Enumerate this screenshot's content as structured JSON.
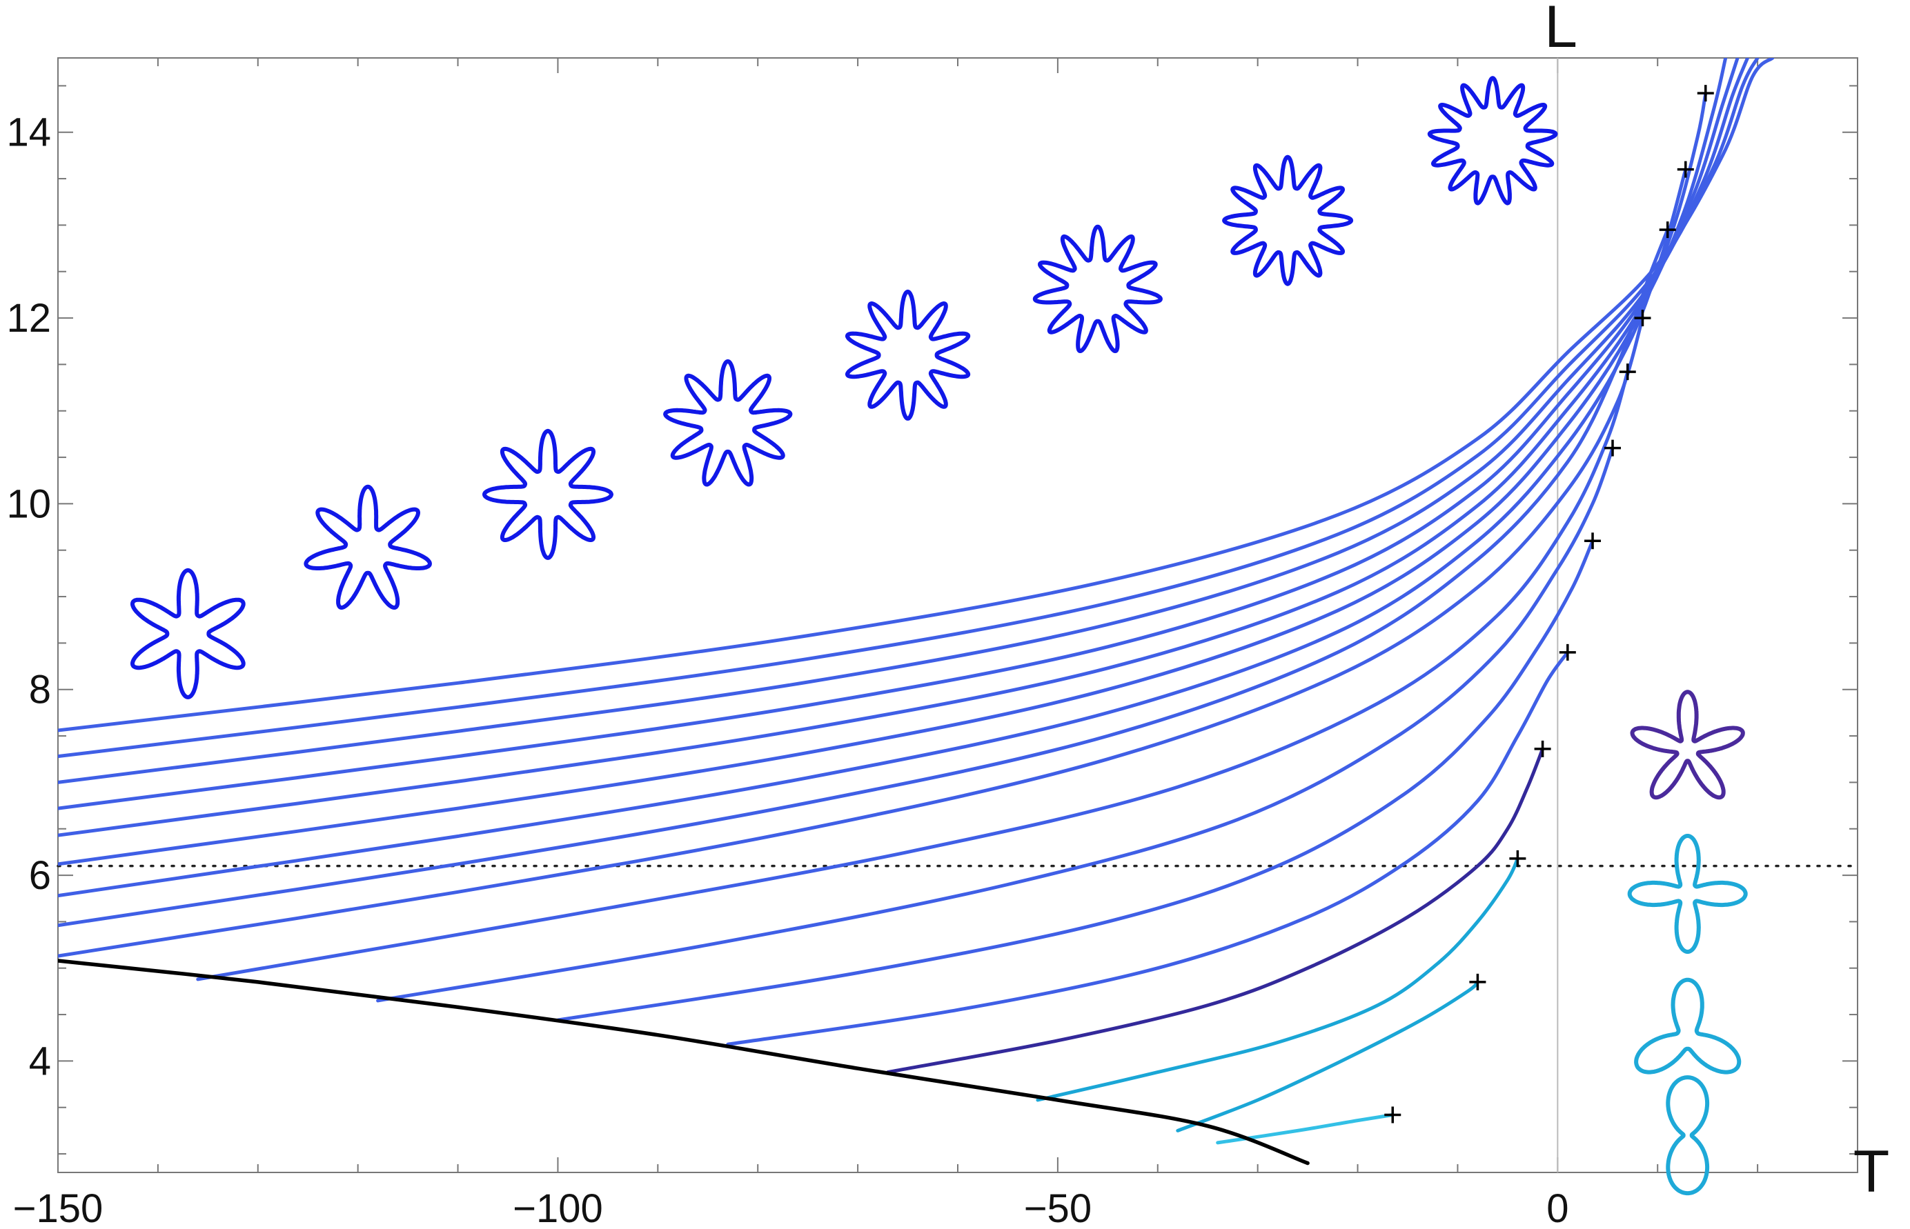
{
  "chart_data": {
    "type": "line",
    "xlabel": "T",
    "ylabel": "L",
    "xlim": [
      -150,
      30
    ],
    "ylim": [
      2.8,
      14.8
    ],
    "x_ticks": [
      -150,
      -100,
      -50,
      0
    ],
    "x_tick_labels": [
      "−150",
      "−100",
      "−50",
      "0"
    ],
    "y_ticks": [
      4,
      6,
      8,
      10,
      12,
      14
    ],
    "y_tick_labels": [
      "4",
      "6",
      "8",
      "10",
      "12",
      "14"
    ],
    "grid": false,
    "frame": true,
    "reference_lines": [
      {
        "kind": "horizontal",
        "y": 6.1,
        "style": "dotted",
        "color": "#222222"
      },
      {
        "kind": "vertical",
        "x": 0,
        "style": "solid-thin",
        "color": "#bbbbbb"
      }
    ],
    "colors": {
      "boundary": "#000000",
      "branch_blue": "#3f5fe6",
      "branch_navy": "#33299a",
      "branch_cyan": "#1aa6d6",
      "flower_blue": "#1018e8",
      "flower_purple": "#4a2a9c",
      "flower_cyan": "#1ea9d8"
    },
    "boundary_curve": {
      "color": "#000000",
      "points": [
        [
          -150,
          5.08
        ],
        [
          -130,
          4.85
        ],
        [
          -110,
          4.58
        ],
        [
          -90,
          4.28
        ],
        [
          -70,
          3.92
        ],
        [
          -50,
          3.58
        ],
        [
          -35,
          3.3
        ],
        [
          -25,
          2.9
        ]
      ]
    },
    "series": [
      {
        "color": "#33c0e6",
        "points": [
          [
            -34,
            3.12
          ],
          [
            -26,
            3.25
          ],
          [
            -20,
            3.36
          ],
          [
            -16.5,
            3.42
          ]
        ],
        "endpoint": [
          -16.5,
          3.42
        ]
      },
      {
        "color": "#1aa6d6",
        "points": [
          [
            -38,
            3.25
          ],
          [
            -30,
            3.58
          ],
          [
            -22,
            3.98
          ],
          [
            -14,
            4.42
          ],
          [
            -9,
            4.75
          ],
          [
            -8,
            4.85
          ]
        ],
        "endpoint": [
          -8,
          4.85
        ]
      },
      {
        "color": "#1aa6d6",
        "points": [
          [
            -52,
            3.58
          ],
          [
            -40,
            3.88
          ],
          [
            -28,
            4.2
          ],
          [
            -18,
            4.6
          ],
          [
            -12,
            5.05
          ],
          [
            -8,
            5.5
          ],
          [
            -5,
            5.95
          ],
          [
            -4,
            6.18
          ]
        ],
        "endpoint": [
          -4,
          6.18
        ]
      },
      {
        "color": "#33299a",
        "points": [
          [
            -67,
            3.88
          ],
          [
            -50,
            4.22
          ],
          [
            -35,
            4.6
          ],
          [
            -25,
            5.0
          ],
          [
            -15,
            5.55
          ],
          [
            -8,
            6.1
          ],
          [
            -5,
            6.5
          ],
          [
            -3,
            6.95
          ],
          [
            -1.5,
            7.36
          ]
        ],
        "endpoint": [
          -1.5,
          7.36
        ]
      },
      {
        "color": "#3f5fe6",
        "points": [
          [
            -83,
            4.18
          ],
          [
            -60,
            4.55
          ],
          [
            -40,
            5.0
          ],
          [
            -25,
            5.55
          ],
          [
            -15,
            6.15
          ],
          [
            -8,
            6.8
          ],
          [
            -4,
            7.5
          ],
          [
            -1,
            8.1
          ],
          [
            1,
            8.4
          ]
        ],
        "endpoint": [
          1,
          8.4
        ]
      },
      {
        "color": "#3f5fe6",
        "points": [
          [
            -100,
            4.44
          ],
          [
            -70,
            4.95
          ],
          [
            -45,
            5.5
          ],
          [
            -28,
            6.1
          ],
          [
            -15,
            6.9
          ],
          [
            -7,
            7.7
          ],
          [
            -2,
            8.45
          ],
          [
            1.5,
            9.1
          ],
          [
            3.5,
            9.6
          ]
        ],
        "endpoint": [
          3.5,
          9.6
        ]
      },
      {
        "color": "#3f5fe6",
        "points": [
          [
            -118,
            4.65
          ],
          [
            -85,
            5.25
          ],
          [
            -55,
            5.9
          ],
          [
            -32,
            6.6
          ],
          [
            -16,
            7.5
          ],
          [
            -6,
            8.4
          ],
          [
            0,
            9.3
          ],
          [
            3.5,
            10.0
          ],
          [
            5.5,
            10.6
          ]
        ],
        "endpoint": [
          5.5,
          10.6
        ]
      },
      {
        "color": "#3f5fe6",
        "points": [
          [
            -136,
            4.88
          ],
          [
            -100,
            5.55
          ],
          [
            -65,
            6.25
          ],
          [
            -38,
            6.95
          ],
          [
            -18,
            7.85
          ],
          [
            -6,
            8.8
          ],
          [
            1,
            9.8
          ],
          [
            5,
            10.7
          ],
          [
            7,
            11.42
          ]
        ],
        "endpoint": [
          7,
          11.42
        ]
      },
      {
        "color": "#3f5fe6",
        "points": [
          [
            -150,
            5.13
          ],
          [
            -110,
            5.82
          ],
          [
            -75,
            6.5
          ],
          [
            -45,
            7.25
          ],
          [
            -22,
            8.15
          ],
          [
            -8,
            9.1
          ],
          [
            1,
            10.15
          ],
          [
            6,
            11.1
          ],
          [
            8.5,
            12.0
          ]
        ],
        "endpoint": [
          8.5,
          12.0
        ]
      },
      {
        "color": "#3f5fe6",
        "points": [
          [
            -150,
            5.46
          ],
          [
            -110,
            6.12
          ],
          [
            -75,
            6.78
          ],
          [
            -45,
            7.5
          ],
          [
            -22,
            8.4
          ],
          [
            -8,
            9.4
          ],
          [
            1,
            10.45
          ],
          [
            6,
            11.5
          ],
          [
            9,
            12.4
          ],
          [
            11,
            12.95
          ]
        ],
        "endpoint": [
          11,
          12.95
        ]
      },
      {
        "color": "#3f5fe6",
        "points": [
          [
            -150,
            5.78
          ],
          [
            -110,
            6.42
          ],
          [
            -75,
            7.05
          ],
          [
            -45,
            7.75
          ],
          [
            -22,
            8.62
          ],
          [
            -8,
            9.6
          ],
          [
            1,
            10.65
          ],
          [
            7,
            11.7
          ],
          [
            10.5,
            12.7
          ],
          [
            12.8,
            13.6
          ]
        ],
        "endpoint": [
          12.8,
          13.6
        ]
      },
      {
        "color": "#3f5fe6",
        "points": [
          [
            -150,
            6.12
          ],
          [
            -110,
            6.72
          ],
          [
            -75,
            7.32
          ],
          [
            -45,
            8.0
          ],
          [
            -22,
            8.85
          ],
          [
            -8,
            9.8
          ],
          [
            1,
            10.85
          ],
          [
            7.5,
            11.9
          ],
          [
            11.5,
            12.95
          ],
          [
            14,
            13.95
          ],
          [
            14.8,
            14.42
          ]
        ],
        "endpoint": [
          14.8,
          14.42
        ]
      },
      {
        "color": "#3f5fe6",
        "points": [
          [
            -150,
            6.43
          ],
          [
            -110,
            7.01
          ],
          [
            -75,
            7.58
          ],
          [
            -45,
            8.23
          ],
          [
            -22,
            9.05
          ],
          [
            -8,
            9.98
          ],
          [
            1,
            11.02
          ],
          [
            8,
            12.05
          ],
          [
            12.5,
            13.1
          ],
          [
            15.5,
            14.2
          ],
          [
            16.8,
            14.8
          ]
        ],
        "endpoint": null
      },
      {
        "color": "#3f5fe6",
        "points": [
          [
            -150,
            6.72
          ],
          [
            -110,
            7.28
          ],
          [
            -75,
            7.83
          ],
          [
            -45,
            8.46
          ],
          [
            -22,
            9.26
          ],
          [
            -8,
            10.16
          ],
          [
            1,
            11.18
          ],
          [
            8.5,
            12.2
          ],
          [
            13.5,
            13.3
          ],
          [
            16.5,
            14.3
          ],
          [
            18,
            14.8
          ]
        ],
        "endpoint": null
      },
      {
        "color": "#3f5fe6",
        "points": [
          [
            -150,
            7.0
          ],
          [
            -110,
            7.55
          ],
          [
            -75,
            8.08
          ],
          [
            -45,
            8.7
          ],
          [
            -22,
            9.47
          ],
          [
            -8,
            10.34
          ],
          [
            1,
            11.33
          ],
          [
            9,
            12.32
          ],
          [
            14.5,
            13.45
          ],
          [
            17.5,
            14.4
          ],
          [
            19,
            14.8
          ]
        ],
        "endpoint": null
      },
      {
        "color": "#3f5fe6",
        "points": [
          [
            -150,
            7.28
          ],
          [
            -110,
            7.81
          ],
          [
            -75,
            8.33
          ],
          [
            -45,
            8.93
          ],
          [
            -22,
            9.67
          ],
          [
            -8,
            10.52
          ],
          [
            1,
            11.48
          ],
          [
            9.5,
            12.45
          ],
          [
            15.5,
            13.6
          ],
          [
            18.5,
            14.5
          ],
          [
            20,
            14.8
          ]
        ],
        "endpoint": null
      },
      {
        "color": "#3f5fe6",
        "points": [
          [
            -150,
            7.56
          ],
          [
            -110,
            8.07
          ],
          [
            -75,
            8.58
          ],
          [
            -45,
            9.17
          ],
          [
            -22,
            9.88
          ],
          [
            -8,
            10.7
          ],
          [
            1,
            11.63
          ],
          [
            10,
            12.58
          ],
          [
            16.5,
            13.75
          ],
          [
            19.5,
            14.6
          ],
          [
            21.5,
            14.8
          ]
        ],
        "endpoint": null
      }
    ],
    "flower_insets": [
      {
        "shape": "flower",
        "petals": 6,
        "color": "#1018e8",
        "x": -137,
        "y": 8.6
      },
      {
        "shape": "flower",
        "petals": 7,
        "color": "#1018e8",
        "x": -119,
        "y": 9.5
      },
      {
        "shape": "flower",
        "petals": 8,
        "color": "#1018e8",
        "x": -101,
        "y": 10.1
      },
      {
        "shape": "flower",
        "petals": 9,
        "color": "#1018e8",
        "x": -83,
        "y": 10.85
      },
      {
        "shape": "flower",
        "petals": 10,
        "color": "#1018e8",
        "x": -65,
        "y": 11.6
      },
      {
        "shape": "flower",
        "petals": 11,
        "color": "#1018e8",
        "x": -46,
        "y": 12.3
      },
      {
        "shape": "flower",
        "petals": 12,
        "color": "#1018e8",
        "x": -27,
        "y": 13.05
      },
      {
        "shape": "flower",
        "petals": 13,
        "color": "#1018e8",
        "x": -6.5,
        "y": 13.9
      },
      {
        "shape": "flower",
        "petals": 5,
        "color": "#4a2a9c",
        "x": 13,
        "y": 7.35
      },
      {
        "shape": "flower",
        "petals": 4,
        "color": "#1ea9d8",
        "x": 13,
        "y": 5.8
      },
      {
        "shape": "flower",
        "petals": 3,
        "color": "#1ea9d8",
        "x": 13,
        "y": 4.25
      },
      {
        "shape": "flower",
        "petals": 2,
        "color": "#1ea9d8",
        "x": 13,
        "y": 3.2
      }
    ]
  }
}
